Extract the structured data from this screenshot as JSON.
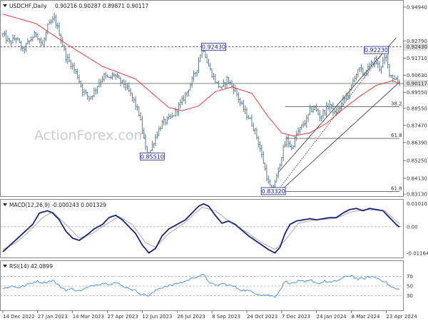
{
  "chart_data": [
    {
      "type": "candlestick",
      "header": {
        "symbol": "USDCHF,Daily",
        "ohlc": "0.90216 0.90287 0.89871 0.90117"
      },
      "watermark": "ActionForex.com",
      "ylim": [
        0.83,
        0.953
      ],
      "y_ticks": [
        {
          "value": 0.9494,
          "label": "0.94940"
        },
        {
          "value": 0.9279,
          "label": "0.92790"
        },
        {
          "value": 0.9171,
          "label": "0.91710"
        },
        {
          "value": 0.9063,
          "label": "0.90630"
        },
        {
          "value": 0.8955,
          "label": "0.89550"
        },
        {
          "value": 0.8855,
          "label": "0.88550"
        },
        {
          "value": 0.8747,
          "label": "0.87470"
        },
        {
          "value": 0.8639,
          "label": "0.86390"
        },
        {
          "value": 0.8525,
          "label": "0.85250"
        },
        {
          "value": 0.8413,
          "label": "0.84130"
        },
        {
          "value": 0.8313,
          "label": "0.83130"
        }
      ],
      "x_ticks": [
        {
          "i": 0,
          "label": "14 Dec 2022"
        },
        {
          "i": 21,
          "label": "27 Jan 2023"
        },
        {
          "i": 42,
          "label": "14 Mar 2023"
        },
        {
          "i": 63,
          "label": "27 Apr 2023"
        },
        {
          "i": 84,
          "label": "12 Jun 2023"
        },
        {
          "i": 105,
          "label": "26 Jul 2023"
        },
        {
          "i": 126,
          "label": "8 Sep 2023"
        },
        {
          "i": 147,
          "label": "24 Oct 2023"
        },
        {
          "i": 168,
          "label": "7 Dec 2023"
        },
        {
          "i": 189,
          "label": "24 Jan 2024"
        },
        {
          "i": 210,
          "label": "8 Mar 2024"
        },
        {
          "i": 231,
          "label": "23 Apr 2024"
        }
      ],
      "n_bars": 240,
      "close_anchors": [
        [
          0,
          0.932
        ],
        [
          4,
          0.927
        ],
        [
          8,
          0.93
        ],
        [
          12,
          0.922
        ],
        [
          16,
          0.928
        ],
        [
          20,
          0.933
        ],
        [
          24,
          0.925
        ],
        [
          27,
          0.937
        ],
        [
          31,
          0.942
        ],
        [
          34,
          0.933
        ],
        [
          38,
          0.918
        ],
        [
          42,
          0.912
        ],
        [
          45,
          0.906
        ],
        [
          48,
          0.897
        ],
        [
          52,
          0.892
        ],
        [
          55,
          0.896
        ],
        [
          58,
          0.902
        ],
        [
          61,
          0.906
        ],
        [
          64,
          0.904
        ],
        [
          67,
          0.907
        ],
        [
          70,
          0.903
        ],
        [
          73,
          0.901
        ],
        [
          76,
          0.896
        ],
        [
          79,
          0.89
        ],
        [
          82,
          0.882
        ],
        [
          84,
          0.872
        ],
        [
          86,
          0.86
        ],
        [
          88,
          0.856
        ],
        [
          90,
          0.862
        ],
        [
          93,
          0.87
        ],
        [
          96,
          0.876
        ],
        [
          99,
          0.878
        ],
        [
          102,
          0.88
        ],
        [
          105,
          0.885
        ],
        [
          108,
          0.89
        ],
        [
          111,
          0.896
        ],
        [
          114,
          0.903
        ],
        [
          117,
          0.911
        ],
        [
          119,
          0.92
        ],
        [
          121,
          0.923
        ],
        [
          123,
          0.915
        ],
        [
          126,
          0.907
        ],
        [
          129,
          0.901
        ],
        [
          132,
          0.898
        ],
        [
          135,
          0.904
        ],
        [
          137,
          0.901
        ],
        [
          140,
          0.897
        ],
        [
          143,
          0.889
        ],
        [
          146,
          0.883
        ],
        [
          149,
          0.878
        ],
        [
          152,
          0.871
        ],
        [
          155,
          0.86
        ],
        [
          158,
          0.847
        ],
        [
          160,
          0.838
        ],
        [
          162,
          0.834
        ],
        [
          165,
          0.842
        ],
        [
          168,
          0.856
        ],
        [
          171,
          0.866
        ],
        [
          174,
          0.86
        ],
        [
          177,
          0.869
        ],
        [
          180,
          0.874
        ],
        [
          183,
          0.878
        ],
        [
          185,
          0.884
        ],
        [
          188,
          0.886
        ],
        [
          191,
          0.88
        ],
        [
          194,
          0.884
        ],
        [
          197,
          0.888
        ],
        [
          200,
          0.882
        ],
        [
          203,
          0.886
        ],
        [
          206,
          0.892
        ],
        [
          209,
          0.896
        ],
        [
          212,
          0.906
        ],
        [
          215,
          0.91
        ],
        [
          218,
          0.907
        ],
        [
          221,
          0.912
        ],
        [
          224,
          0.916
        ],
        [
          227,
          0.911
        ],
        [
          229,
          0.915
        ],
        [
          231,
          0.917
        ],
        [
          233,
          0.908
        ],
        [
          235,
          0.905
        ],
        [
          237,
          0.904
        ],
        [
          239,
          0.9012
        ]
      ],
      "ma_anchors": [
        [
          0,
          0.945
        ],
        [
          20,
          0.939
        ],
        [
          40,
          0.925
        ],
        [
          60,
          0.912
        ],
        [
          80,
          0.904
        ],
        [
          90,
          0.895
        ],
        [
          100,
          0.886
        ],
        [
          108,
          0.884
        ],
        [
          118,
          0.887
        ],
        [
          128,
          0.896
        ],
        [
          138,
          0.899
        ],
        [
          150,
          0.895
        ],
        [
          160,
          0.88
        ],
        [
          168,
          0.87
        ],
        [
          175,
          0.868
        ],
        [
          185,
          0.87
        ],
        [
          195,
          0.876
        ],
        [
          205,
          0.885
        ],
        [
          215,
          0.893
        ],
        [
          225,
          0.9
        ],
        [
          235,
          0.903
        ],
        [
          239,
          0.901
        ]
      ],
      "levels": [
        {
          "value": 0.9243,
          "label": "0.92430",
          "style": "dashed"
        },
        {
          "value": 0.9012,
          "label": "0.90117",
          "style": "solid"
        }
      ],
      "fib_levels": [
        {
          "value": 0.8865,
          "label": "38.2",
          "i0": 170
        },
        {
          "value": 0.8665,
          "label": "61.8",
          "i0": 170
        },
        {
          "value": 0.833,
          "label": "61.8",
          "i0": 165
        }
      ],
      "callouts": [
        {
          "i": 127,
          "value": 0.9243,
          "label": "0.92430"
        },
        {
          "i": 90,
          "value": 0.8551,
          "label": "0.85510"
        },
        {
          "i": 163,
          "value": 0.8332,
          "label": "0.83320"
        },
        {
          "i": 225,
          "value": 0.9223,
          "label": "0.92230"
        }
      ],
      "channel": [
        {
          "i0": 166,
          "v0": 0.845,
          "i1": 237,
          "v1": 0.93
        },
        {
          "i0": 168,
          "v0": 0.834,
          "i1": 239,
          "v1": 0.902
        }
      ],
      "channel_dotted": {
        "i0": 166,
        "v0": 0.834,
        "i1": 231,
        "v1": 0.923
      },
      "colors": {
        "bars": "#5b7c8d",
        "ma": "#e63b3b",
        "level_line": "#555555",
        "callout_border": "#1a237e"
      }
    },
    {
      "type": "line",
      "title": "MACD(12,26,9) -0.000243 0.001329",
      "ylim": [
        -0.0135,
        0.0115
      ],
      "y_ticks": [
        {
          "value": 0.010101,
          "label": "0.010101"
        },
        {
          "value": 0.0,
          "label": "0.00"
        },
        {
          "value": -0.011645,
          "label": "-0.011645"
        }
      ],
      "macd_anchors": [
        [
          0,
          -0.011
        ],
        [
          6,
          -0.007
        ],
        [
          12,
          -0.003
        ],
        [
          18,
          0.001
        ],
        [
          22,
          0.006
        ],
        [
          27,
          0.007
        ],
        [
          30,
          0.006
        ],
        [
          34,
          0.003
        ],
        [
          38,
          -0.002
        ],
        [
          42,
          -0.005
        ],
        [
          46,
          -0.006
        ],
        [
          50,
          -0.004
        ],
        [
          55,
          -0.001
        ],
        [
          60,
          0.001
        ],
        [
          64,
          0.004
        ],
        [
          68,
          0.005
        ],
        [
          72,
          0.003
        ],
        [
          76,
          0.0
        ],
        [
          80,
          -0.003
        ],
        [
          84,
          -0.008
        ],
        [
          88,
          -0.0115
        ],
        [
          92,
          -0.0095
        ],
        [
          96,
          -0.004
        ],
        [
          100,
          -0.001
        ],
        [
          105,
          0.001
        ],
        [
          110,
          0.003
        ],
        [
          114,
          0.006
        ],
        [
          118,
          0.009
        ],
        [
          121,
          0.01
        ],
        [
          124,
          0.009
        ],
        [
          128,
          0.005
        ],
        [
          132,
          0.0015
        ],
        [
          136,
          0.0025
        ],
        [
          140,
          0.001
        ],
        [
          144,
          -0.0015
        ],
        [
          148,
          -0.004
        ],
        [
          152,
          -0.006
        ],
        [
          156,
          -0.008
        ],
        [
          160,
          -0.01
        ],
        [
          164,
          -0.0115
        ],
        [
          167,
          -0.009
        ],
        [
          170,
          -0.003
        ],
        [
          173,
          0.001
        ],
        [
          177,
          0.0025
        ],
        [
          181,
          0.003
        ],
        [
          185,
          0.0035
        ],
        [
          189,
          0.003
        ],
        [
          193,
          0.0035
        ],
        [
          197,
          0.004
        ],
        [
          201,
          0.004
        ],
        [
          205,
          0.006
        ],
        [
          209,
          0.0075
        ],
        [
          213,
          0.008
        ],
        [
          217,
          0.007
        ],
        [
          221,
          0.008
        ],
        [
          225,
          0.0075
        ],
        [
          229,
          0.007
        ],
        [
          233,
          0.004
        ],
        [
          237,
          0.001
        ],
        [
          239,
          -0.0002
        ]
      ],
      "signal_anchors": [
        [
          0,
          -0.01
        ],
        [
          8,
          -0.007
        ],
        [
          16,
          -0.002
        ],
        [
          24,
          0.004
        ],
        [
          30,
          0.0065
        ],
        [
          38,
          0.001
        ],
        [
          46,
          -0.005
        ],
        [
          54,
          -0.003
        ],
        [
          62,
          0.001
        ],
        [
          70,
          0.0045
        ],
        [
          78,
          0.001
        ],
        [
          86,
          -0.007
        ],
        [
          92,
          -0.009
        ],
        [
          100,
          -0.003
        ],
        [
          110,
          0.002
        ],
        [
          120,
          0.0085
        ],
        [
          128,
          0.007
        ],
        [
          136,
          0.0025
        ],
        [
          146,
          -0.002
        ],
        [
          156,
          -0.007
        ],
        [
          164,
          -0.01
        ],
        [
          170,
          -0.006
        ],
        [
          178,
          0.0015
        ],
        [
          188,
          0.003
        ],
        [
          200,
          0.0035
        ],
        [
          210,
          0.0065
        ],
        [
          220,
          0.0075
        ],
        [
          230,
          0.007
        ],
        [
          239,
          0.0013
        ]
      ],
      "colors": {
        "macd": "#1a237e",
        "signal": "#aaaaaa"
      }
    },
    {
      "type": "line",
      "title": "RSI(14) 42.0899",
      "ylim": [
        0,
        100
      ],
      "y_ticks": [
        {
          "value": 70,
          "label": "70"
        },
        {
          "value": 50,
          "label": "50"
        },
        {
          "value": 30,
          "label": "30"
        }
      ],
      "rsi_anchors": [
        [
          0,
          44
        ],
        [
          5,
          50
        ],
        [
          10,
          47
        ],
        [
          15,
          53
        ],
        [
          20,
          60
        ],
        [
          25,
          57
        ],
        [
          30,
          62
        ],
        [
          34,
          50
        ],
        [
          38,
          42
        ],
        [
          42,
          44
        ],
        [
          46,
          40
        ],
        [
          50,
          45
        ],
        [
          55,
          52
        ],
        [
          60,
          56
        ],
        [
          64,
          55
        ],
        [
          68,
          57
        ],
        [
          72,
          50
        ],
        [
          76,
          46
        ],
        [
          80,
          40
        ],
        [
          84,
          33
        ],
        [
          88,
          30
        ],
        [
          90,
          35
        ],
        [
          94,
          45
        ],
        [
          98,
          50
        ],
        [
          102,
          52
        ],
        [
          106,
          56
        ],
        [
          110,
          60
        ],
        [
          114,
          66
        ],
        [
          118,
          71
        ],
        [
          121,
          73
        ],
        [
          124,
          60
        ],
        [
          128,
          50
        ],
        [
          132,
          55
        ],
        [
          136,
          52
        ],
        [
          140,
          48
        ],
        [
          144,
          42
        ],
        [
          148,
          40
        ],
        [
          152,
          36
        ],
        [
          156,
          32
        ],
        [
          160,
          31
        ],
        [
          164,
          28
        ],
        [
          167,
          42
        ],
        [
          170,
          60
        ],
        [
          174,
          55
        ],
        [
          178,
          60
        ],
        [
          182,
          58
        ],
        [
          186,
          62
        ],
        [
          190,
          55
        ],
        [
          194,
          60
        ],
        [
          198,
          57
        ],
        [
          202,
          62
        ],
        [
          206,
          68
        ],
        [
          210,
          72
        ],
        [
          214,
          64
        ],
        [
          218,
          66
        ],
        [
          222,
          70
        ],
        [
          226,
          66
        ],
        [
          230,
          60
        ],
        [
          234,
          48
        ],
        [
          237,
          44
        ],
        [
          239,
          42.09
        ]
      ],
      "colors": {
        "rsi": "#3d8be0"
      }
    }
  ],
  "x_axis": {
    "labels_note": "shared date axis"
  }
}
